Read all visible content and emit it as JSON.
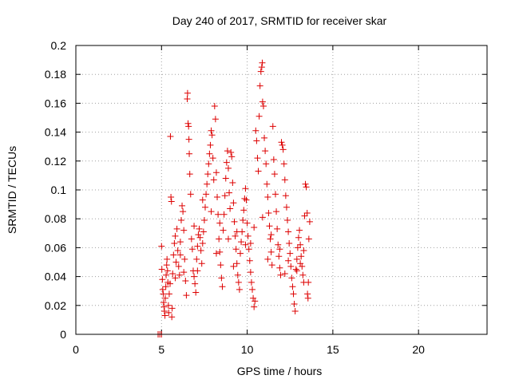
{
  "chart_data": {
    "type": "scatter",
    "title": "Day 240 of 2017, SRMTID for receiver skar",
    "xlabel": "GPS time / hours",
    "ylabel": "SRMTID / TECUs",
    "xlim": [
      0,
      24
    ],
    "ylim": [
      0,
      0.2
    ],
    "xticks": [
      "0",
      "5",
      "10",
      "15",
      "20"
    ],
    "yticks": [
      "0",
      "0.02",
      "0.04",
      "0.06",
      "0.08",
      "0.1",
      "0.12",
      "0.14",
      "0.16",
      "0.18",
      "0.2"
    ],
    "grid": true,
    "marker": "+",
    "colors": {
      "points": "#dd0000",
      "grid": "#a0a0a0",
      "axes": "#000000"
    },
    "series": [
      {
        "points": [
          [
            4.8,
            0.0
          ],
          [
            4.9,
            0.0
          ],
          [
            5.0,
            0.0
          ],
          [
            5.0,
            0.061
          ],
          [
            5.02,
            0.045
          ],
          [
            5.05,
            0.038
          ],
          [
            5.07,
            0.031
          ],
          [
            5.1,
            0.028
          ],
          [
            5.12,
            0.022
          ],
          [
            5.15,
            0.019
          ],
          [
            5.17,
            0.016
          ],
          [
            5.2,
            0.013
          ],
          [
            5.22,
            0.025
          ],
          [
            5.25,
            0.033
          ],
          [
            5.27,
            0.041
          ],
          [
            5.3,
            0.048
          ],
          [
            5.32,
            0.052
          ],
          [
            5.35,
            0.044
          ],
          [
            5.37,
            0.036
          ],
          [
            5.4,
            0.02
          ],
          [
            5.42,
            0.015
          ],
          [
            5.45,
            0.028
          ],
          [
            5.5,
            0.035
          ],
          [
            5.52,
            0.137
          ],
          [
            5.55,
            0.095
          ],
          [
            5.58,
            0.092
          ],
          [
            5.6,
            0.012
          ],
          [
            5.62,
            0.018
          ],
          [
            5.65,
            0.042
          ],
          [
            5.7,
            0.055
          ],
          [
            5.75,
            0.063
          ],
          [
            5.8,
            0.068
          ],
          [
            5.85,
            0.05
          ],
          [
            5.9,
            0.073
          ],
          [
            5.95,
            0.058
          ],
          [
            6.0,
            0.047
          ],
          [
            6.05,
            0.041
          ],
          [
            6.1,
            0.064
          ],
          [
            6.15,
            0.079
          ],
          [
            6.2,
            0.089
          ],
          [
            6.25,
            0.085
          ],
          [
            6.3,
            0.072
          ],
          [
            6.35,
            0.052
          ],
          [
            6.4,
            0.037
          ],
          [
            6.45,
            0.027
          ],
          [
            6.5,
            0.163
          ],
          [
            6.52,
            0.167
          ],
          [
            6.55,
            0.146
          ],
          [
            6.58,
            0.144
          ],
          [
            6.6,
            0.135
          ],
          [
            6.62,
            0.125
          ],
          [
            6.65,
            0.111
          ],
          [
            6.7,
            0.097
          ],
          [
            6.75,
            0.066
          ],
          [
            6.8,
            0.059
          ],
          [
            6.85,
            0.044
          ],
          [
            6.9,
            0.04
          ],
          [
            6.95,
            0.035
          ],
          [
            7.0,
            0.029
          ],
          [
            7.05,
            0.052
          ],
          [
            7.1,
            0.061
          ],
          [
            7.15,
            0.069
          ],
          [
            7.2,
            0.073
          ],
          [
            7.25,
            0.067
          ],
          [
            7.3,
            0.058
          ],
          [
            7.35,
            0.049
          ],
          [
            7.4,
            0.063
          ],
          [
            7.45,
            0.071
          ],
          [
            7.5,
            0.079
          ],
          [
            7.55,
            0.088
          ],
          [
            7.6,
            0.097
          ],
          [
            7.65,
            0.104
          ],
          [
            7.7,
            0.111
          ],
          [
            7.75,
            0.118
          ],
          [
            7.8,
            0.125
          ],
          [
            7.85,
            0.131
          ],
          [
            7.9,
            0.141
          ],
          [
            7.95,
            0.138
          ],
          [
            8.0,
            0.122
          ],
          [
            8.05,
            0.107
          ],
          [
            8.1,
            0.158
          ],
          [
            8.15,
            0.149
          ],
          [
            8.2,
            0.112
          ],
          [
            8.25,
            0.095
          ],
          [
            8.3,
            0.083
          ],
          [
            8.35,
            0.066
          ],
          [
            8.4,
            0.057
          ],
          [
            8.45,
            0.048
          ],
          [
            8.5,
            0.039
          ],
          [
            8.55,
            0.033
          ],
          [
            8.6,
            0.072
          ],
          [
            8.65,
            0.083
          ],
          [
            8.7,
            0.096
          ],
          [
            8.75,
            0.108
          ],
          [
            8.8,
            0.119
          ],
          [
            8.85,
            0.127
          ],
          [
            8.9,
            0.115
          ],
          [
            8.95,
            0.098
          ],
          [
            9.0,
            0.087
          ],
          [
            9.05,
            0.126
          ],
          [
            9.1,
            0.123
          ],
          [
            9.15,
            0.105
          ],
          [
            9.2,
            0.091
          ],
          [
            9.25,
            0.078
          ],
          [
            9.3,
            0.068
          ],
          [
            9.35,
            0.059
          ],
          [
            9.4,
            0.049
          ],
          [
            9.45,
            0.041
          ],
          [
            9.5,
            0.036
          ],
          [
            9.55,
            0.031
          ],
          [
            9.6,
            0.056
          ],
          [
            9.65,
            0.064
          ],
          [
            9.7,
            0.071
          ],
          [
            9.75,
            0.079
          ],
          [
            9.8,
            0.086
          ],
          [
            9.85,
            0.094
          ],
          [
            9.9,
            0.101
          ],
          [
            9.95,
            0.093
          ],
          [
            10.0,
            0.077
          ],
          [
            10.05,
            0.068
          ],
          [
            10.1,
            0.059
          ],
          [
            10.15,
            0.051
          ],
          [
            10.2,
            0.043
          ],
          [
            10.25,
            0.036
          ],
          [
            10.3,
            0.031
          ],
          [
            10.35,
            0.025
          ],
          [
            10.4,
            0.019
          ],
          [
            10.45,
            0.023
          ],
          [
            10.5,
            0.141
          ],
          [
            10.55,
            0.134
          ],
          [
            10.6,
            0.122
          ],
          [
            10.65,
            0.113
          ],
          [
            10.7,
            0.151
          ],
          [
            10.75,
            0.172
          ],
          [
            10.8,
            0.182
          ],
          [
            10.85,
            0.185
          ],
          [
            10.88,
            0.188
          ],
          [
            10.9,
            0.161
          ],
          [
            10.95,
            0.158
          ],
          [
            11.0,
            0.136
          ],
          [
            11.05,
            0.127
          ],
          [
            11.1,
            0.118
          ],
          [
            11.15,
            0.104
          ],
          [
            11.2,
            0.095
          ],
          [
            11.25,
            0.084
          ],
          [
            11.3,
            0.075
          ],
          [
            11.35,
            0.066
          ],
          [
            11.4,
            0.057
          ],
          [
            11.45,
            0.048
          ],
          [
            11.5,
            0.144
          ],
          [
            11.55,
            0.121
          ],
          [
            11.6,
            0.111
          ],
          [
            11.65,
            0.097
          ],
          [
            11.7,
            0.085
          ],
          [
            11.75,
            0.073
          ],
          [
            11.8,
            0.062
          ],
          [
            11.85,
            0.054
          ],
          [
            11.9,
            0.046
          ],
          [
            11.95,
            0.041
          ],
          [
            12.0,
            0.133
          ],
          [
            12.05,
            0.131
          ],
          [
            12.1,
            0.128
          ],
          [
            12.15,
            0.118
          ],
          [
            12.2,
            0.107
          ],
          [
            12.25,
            0.096
          ],
          [
            12.3,
            0.088
          ],
          [
            12.35,
            0.079
          ],
          [
            12.4,
            0.071
          ],
          [
            12.45,
            0.063
          ],
          [
            12.5,
            0.056
          ],
          [
            12.55,
            0.047
          ],
          [
            12.6,
            0.039
          ],
          [
            12.65,
            0.033
          ],
          [
            12.7,
            0.028
          ],
          [
            12.75,
            0.021
          ],
          [
            12.8,
            0.016
          ],
          [
            12.85,
            0.045
          ],
          [
            12.9,
            0.052
          ],
          [
            12.95,
            0.06
          ],
          [
            13.0,
            0.067
          ],
          [
            13.05,
            0.072
          ],
          [
            13.1,
            0.062
          ],
          [
            13.15,
            0.054
          ],
          [
            13.2,
            0.047
          ],
          [
            13.25,
            0.041
          ],
          [
            13.3,
            0.036
          ],
          [
            13.35,
            0.082
          ],
          [
            13.4,
            0.104
          ],
          [
            13.45,
            0.102
          ],
          [
            13.5,
            0.084
          ],
          [
            13.52,
            0.028
          ],
          [
            13.55,
            0.025
          ],
          [
            13.57,
            0.036
          ],
          [
            13.6,
            0.066
          ],
          [
            13.65,
            0.078
          ],
          [
            5.8,
            0.039
          ],
          [
            6.3,
            0.043
          ],
          [
            6.9,
            0.075
          ],
          [
            7.4,
            0.093
          ],
          [
            7.9,
            0.085
          ],
          [
            8.4,
            0.077
          ],
          [
            8.9,
            0.066
          ],
          [
            9.4,
            0.071
          ],
          [
            9.9,
            0.062
          ],
          [
            10.4,
            0.074
          ],
          [
            10.9,
            0.081
          ],
          [
            11.4,
            0.069
          ],
          [
            11.9,
            0.059
          ],
          [
            12.4,
            0.051
          ],
          [
            12.9,
            0.044
          ],
          [
            13.3,
            0.058
          ],
          [
            6.1,
            0.055
          ],
          [
            7.1,
            0.044
          ],
          [
            8.2,
            0.056
          ],
          [
            9.2,
            0.047
          ],
          [
            10.2,
            0.063
          ],
          [
            11.2,
            0.052
          ],
          [
            12.2,
            0.042
          ],
          [
            13.1,
            0.049
          ]
        ]
      }
    ]
  }
}
